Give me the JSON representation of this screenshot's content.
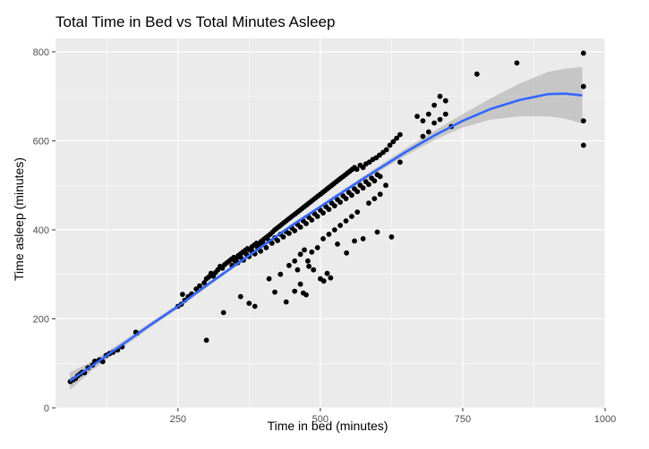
{
  "chart_data": {
    "type": "scatter",
    "title": "Total Time in Bed vs Total Minutes Asleep",
    "xlabel": "Time in bed (minutes)",
    "ylabel": "Time asleep (minutes)",
    "xlim": [
      35,
      1000
    ],
    "ylim": [
      0,
      830
    ],
    "xticks": [
      250,
      500,
      750,
      1000
    ],
    "xtick_labels": [
      "250",
      "500",
      "750",
      "1000"
    ],
    "yticks": [
      0,
      200,
      400,
      600,
      800
    ],
    "ytick_labels": [
      "0",
      "200",
      "400",
      "600",
      "800"
    ],
    "grid": true,
    "colors": {
      "points": "#000000",
      "smooth_line": "#3366ff",
      "ribbon": "#999999",
      "panel": "#ebebeb"
    },
    "points": [
      [
        61,
        59
      ],
      [
        66,
        63
      ],
      [
        70,
        66
      ],
      [
        74,
        72
      ],
      [
        78,
        76
      ],
      [
        82,
        80
      ],
      [
        86,
        79
      ],
      [
        92,
        90
      ],
      [
        100,
        96
      ],
      [
        104,
        105
      ],
      [
        112,
        108
      ],
      [
        118,
        104
      ],
      [
        124,
        118
      ],
      [
        130,
        122
      ],
      [
        136,
        125
      ],
      [
        144,
        130
      ],
      [
        152,
        137
      ],
      [
        176,
        170
      ],
      [
        178,
        168
      ],
      [
        250,
        228
      ],
      [
        256,
        233
      ],
      [
        262,
        242
      ],
      [
        258,
        255
      ],
      [
        268,
        250
      ],
      [
        274,
        256
      ],
      [
        282,
        267
      ],
      [
        288,
        274
      ],
      [
        296,
        281
      ],
      [
        300,
        290
      ],
      [
        304,
        294
      ],
      [
        308,
        302
      ],
      [
        312,
        296
      ],
      [
        316,
        304
      ],
      [
        320,
        310
      ],
      [
        324,
        318
      ],
      [
        328,
        314
      ],
      [
        332,
        322
      ],
      [
        336,
        326
      ],
      [
        340,
        330
      ],
      [
        344,
        334
      ],
      [
        348,
        338
      ],
      [
        352,
        335
      ],
      [
        356,
        342
      ],
      [
        360,
        346
      ],
      [
        364,
        350
      ],
      [
        368,
        354
      ],
      [
        372,
        358
      ],
      [
        376,
        355
      ],
      [
        380,
        362
      ],
      [
        384,
        366
      ],
      [
        388,
        370
      ],
      [
        392,
        368
      ],
      [
        396,
        374
      ],
      [
        400,
        378
      ],
      [
        404,
        382
      ],
      [
        408,
        386
      ],
      [
        412,
        390
      ],
      [
        416,
        395
      ],
      [
        420,
        400
      ],
      [
        424,
        404
      ],
      [
        428,
        408
      ],
      [
        432,
        412
      ],
      [
        436,
        416
      ],
      [
        440,
        420
      ],
      [
        444,
        424
      ],
      [
        448,
        428
      ],
      [
        452,
        432
      ],
      [
        456,
        436
      ],
      [
        460,
        440
      ],
      [
        464,
        444
      ],
      [
        468,
        448
      ],
      [
        472,
        452
      ],
      [
        476,
        456
      ],
      [
        480,
        460
      ],
      [
        484,
        464
      ],
      [
        488,
        468
      ],
      [
        492,
        472
      ],
      [
        496,
        476
      ],
      [
        500,
        480
      ],
      [
        504,
        484
      ],
      [
        508,
        488
      ],
      [
        512,
        492
      ],
      [
        516,
        496
      ],
      [
        520,
        500
      ],
      [
        524,
        504
      ],
      [
        528,
        508
      ],
      [
        532,
        512
      ],
      [
        536,
        516
      ],
      [
        540,
        520
      ],
      [
        544,
        524
      ],
      [
        548,
        528
      ],
      [
        552,
        532
      ],
      [
        556,
        536
      ],
      [
        560,
        540
      ],
      [
        564,
        536
      ],
      [
        570,
        545
      ],
      [
        575,
        540
      ],
      [
        580,
        548
      ],
      [
        586,
        552
      ],
      [
        592,
        558
      ],
      [
        598,
        562
      ],
      [
        604,
        568
      ],
      [
        610,
        574
      ],
      [
        616,
        580
      ],
      [
        622,
        590
      ],
      [
        628,
        598
      ],
      [
        634,
        606
      ],
      [
        640,
        614
      ],
      [
        350,
        330
      ],
      [
        360,
        338
      ],
      [
        370,
        345
      ],
      [
        380,
        352
      ],
      [
        390,
        360
      ],
      [
        400,
        368
      ],
      [
        410,
        375
      ],
      [
        420,
        382
      ],
      [
        430,
        390
      ],
      [
        440,
        396
      ],
      [
        450,
        404
      ],
      [
        460,
        412
      ],
      [
        470,
        420
      ],
      [
        480,
        428
      ],
      [
        490,
        436
      ],
      [
        500,
        444
      ],
      [
        510,
        452
      ],
      [
        520,
        460
      ],
      [
        530,
        468
      ],
      [
        540,
        476
      ],
      [
        550,
        484
      ],
      [
        560,
        492
      ],
      [
        570,
        500
      ],
      [
        580,
        508
      ],
      [
        590,
        516
      ],
      [
        600,
        524
      ],
      [
        330,
        214
      ],
      [
        300,
        152
      ],
      [
        360,
        250
      ],
      [
        375,
        235
      ],
      [
        385,
        228
      ],
      [
        420,
        260
      ],
      [
        440,
        238
      ],
      [
        455,
        262
      ],
      [
        460,
        310
      ],
      [
        465,
        278
      ],
      [
        470,
        258
      ],
      [
        475,
        254
      ],
      [
        478,
        330
      ],
      [
        480,
        318
      ],
      [
        472,
        355
      ],
      [
        488,
        310
      ],
      [
        500,
        290
      ],
      [
        506,
        285
      ],
      [
        512,
        302
      ],
      [
        518,
        292
      ],
      [
        530,
        368
      ],
      [
        546,
        348
      ],
      [
        575,
        380
      ],
      [
        560,
        375
      ],
      [
        600,
        395
      ],
      [
        625,
        384
      ],
      [
        640,
        552
      ],
      [
        670,
        655
      ],
      [
        680,
        645
      ],
      [
        690,
        660
      ],
      [
        700,
        680
      ],
      [
        710,
        700
      ],
      [
        720,
        690
      ],
      [
        730,
        632
      ],
      [
        680,
        610
      ],
      [
        690,
        620
      ],
      [
        700,
        640
      ],
      [
        710,
        648
      ],
      [
        720,
        660
      ],
      [
        775,
        750
      ],
      [
        845,
        775
      ],
      [
        962,
        797
      ],
      [
        962,
        722
      ],
      [
        962,
        645
      ],
      [
        962,
        590
      ],
      [
        410,
        290
      ],
      [
        430,
        300
      ],
      [
        445,
        320
      ],
      [
        455,
        330
      ],
      [
        465,
        345
      ],
      [
        485,
        350
      ],
      [
        495,
        360
      ],
      [
        505,
        380
      ],
      [
        515,
        390
      ],
      [
        525,
        400
      ],
      [
        535,
        410
      ],
      [
        545,
        420
      ],
      [
        555,
        430
      ],
      [
        565,
        440
      ],
      [
        585,
        460
      ],
      [
        595,
        470
      ],
      [
        605,
        480
      ],
      [
        615,
        500
      ],
      [
        345,
        320
      ],
      [
        355,
        326
      ],
      [
        365,
        332
      ],
      [
        375,
        340
      ],
      [
        385,
        346
      ],
      [
        395,
        352
      ],
      [
        405,
        360
      ],
      [
        415,
        370
      ],
      [
        425,
        376
      ],
      [
        435,
        384
      ],
      [
        445,
        392
      ],
      [
        455,
        398
      ],
      [
        465,
        406
      ],
      [
        475,
        414
      ],
      [
        485,
        422
      ],
      [
        495,
        430
      ],
      [
        505,
        438
      ],
      [
        515,
        446
      ],
      [
        525,
        454
      ],
      [
        535,
        462
      ],
      [
        545,
        470
      ],
      [
        555,
        478
      ],
      [
        565,
        486
      ],
      [
        575,
        494
      ],
      [
        585,
        502
      ],
      [
        595,
        510
      ],
      [
        605,
        520
      ]
    ],
    "smooth": {
      "x": [
        60,
        100,
        150,
        200,
        250,
        300,
        350,
        400,
        450,
        500,
        550,
        600,
        650,
        700,
        750,
        800,
        850,
        900,
        930,
        960
      ],
      "y": [
        60,
        95,
        140,
        185,
        228,
        275,
        320,
        365,
        410,
        452,
        494,
        535,
        575,
        612,
        645,
        672,
        692,
        705,
        706,
        702
      ],
      "lower": [
        40,
        85,
        133,
        179,
        223,
        270,
        316,
        361,
        406,
        448,
        489,
        529,
        567,
        602,
        630,
        648,
        655,
        655,
        650,
        638
      ],
      "upper": [
        80,
        105,
        147,
        191,
        233,
        280,
        324,
        369,
        414,
        456,
        499,
        541,
        583,
        622,
        660,
        696,
        729,
        755,
        762,
        766
      ]
    }
  }
}
